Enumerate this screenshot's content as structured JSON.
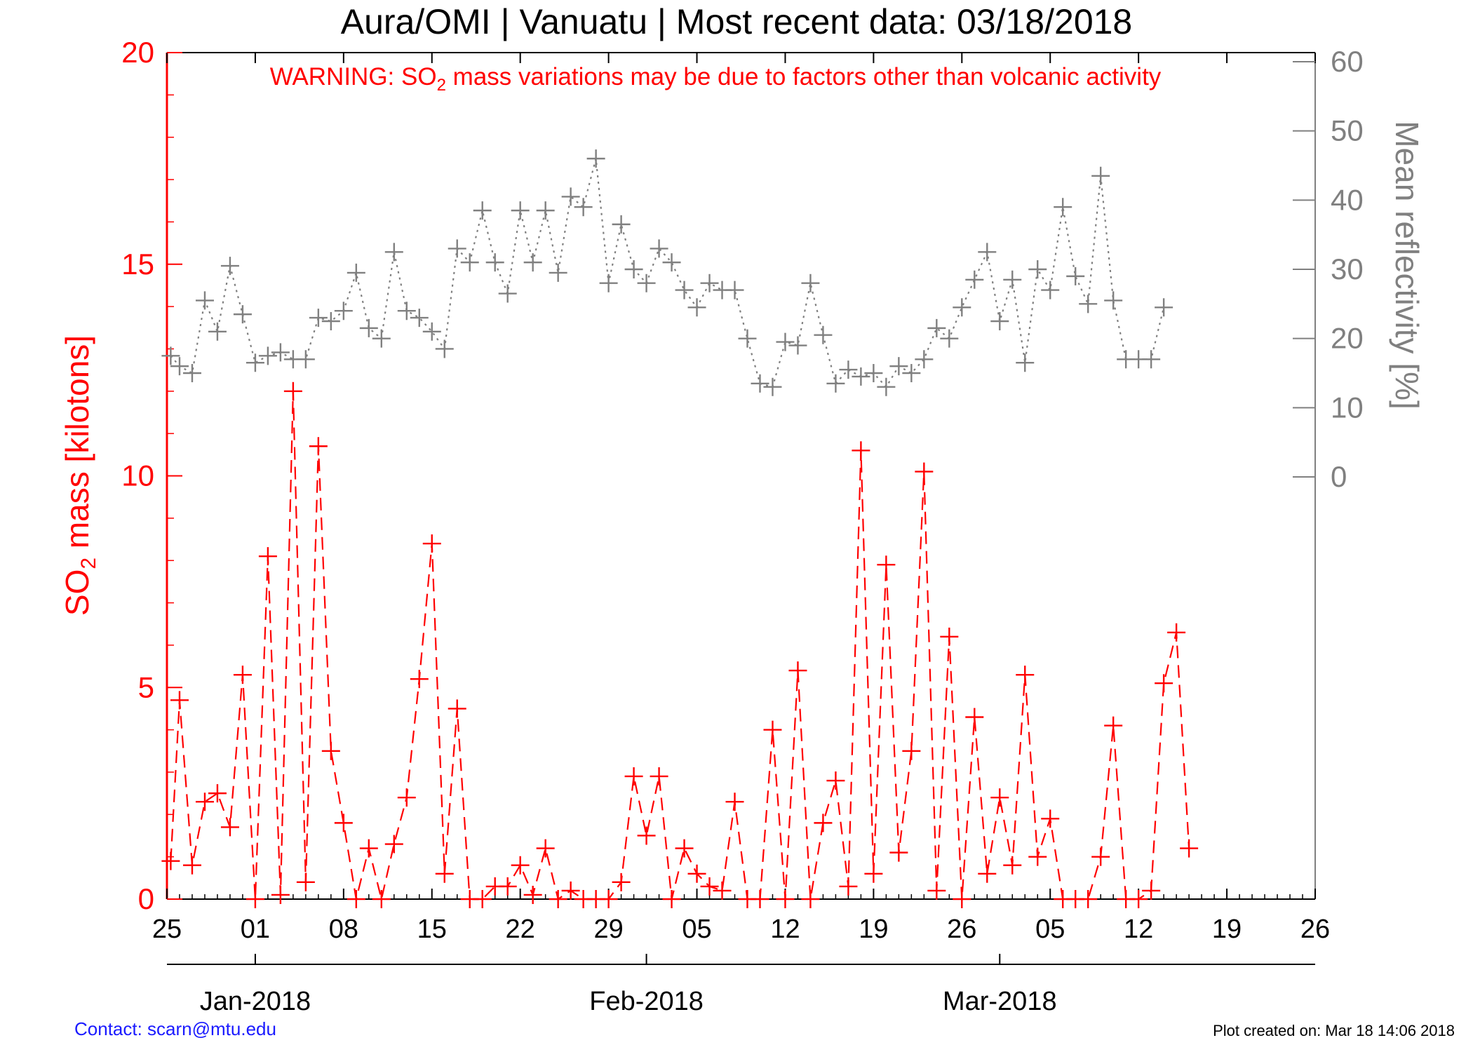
{
  "chart_data": {
    "type": "line",
    "title": "Aura/OMI | Vanuatu | Most recent data: 03/18/2018",
    "warning": {
      "prefix": "WARNING: SO",
      "sub": "2",
      "suffix": " mass variations may be due to factors other than volcanic activity"
    },
    "y_left": {
      "label_prefix": "SO",
      "label_sub": "2",
      "label_suffix": " mass [kilotons]",
      "ticks": [
        "0",
        "5",
        "10",
        "15",
        "20"
      ],
      "ylim": [
        0,
        20
      ]
    },
    "y_right": {
      "label": "Mean reflectivity [%]",
      "ticks": [
        "0",
        "10",
        "20",
        "30",
        "40",
        "50",
        "60"
      ],
      "ylim": [
        0,
        60
      ]
    },
    "x_ticks": [
      "25",
      "01",
      "08",
      "15",
      "22",
      "29",
      "05",
      "12",
      "19",
      "26",
      "05",
      "12",
      "19",
      "26"
    ],
    "month_labels": [
      "Jan-2018",
      "Feb-2018",
      "Mar-2018"
    ],
    "xlim_days": [
      0,
      91
    ],
    "series": [
      {
        "name": "SO2 mass",
        "color": "#ff0000",
        "style": "dashed",
        "points": [
          [
            0.3,
            0.9
          ],
          [
            1.0,
            4.7
          ],
          [
            2.0,
            0.8
          ],
          [
            3.0,
            2.3
          ],
          [
            4.0,
            2.5
          ],
          [
            5.0,
            1.7
          ],
          [
            6.0,
            5.3
          ],
          [
            7.0,
            0.0
          ],
          [
            8.0,
            8.1
          ],
          [
            9.0,
            0.1
          ],
          [
            10.0,
            12.0
          ],
          [
            11.0,
            0.4
          ],
          [
            12.0,
            10.7
          ],
          [
            13.0,
            3.5
          ],
          [
            14.0,
            1.8
          ],
          [
            15.0,
            0.0
          ],
          [
            16.0,
            1.2
          ],
          [
            17.0,
            0.0
          ],
          [
            18.0,
            1.3
          ],
          [
            19.0,
            2.4
          ],
          [
            20.0,
            5.2
          ],
          [
            21.0,
            8.4
          ],
          [
            22.0,
            0.6
          ],
          [
            23.0,
            4.5
          ],
          [
            24.0,
            0.0
          ],
          [
            25.0,
            0.0
          ],
          [
            26.0,
            0.3
          ],
          [
            27.0,
            0.3
          ],
          [
            28.0,
            0.8
          ],
          [
            29.0,
            0.1
          ],
          [
            30.0,
            1.2
          ],
          [
            31.0,
            0.0
          ],
          [
            32.0,
            0.2
          ],
          [
            33.0,
            0.0
          ],
          [
            34.0,
            0.0
          ],
          [
            35.0,
            0.0
          ],
          [
            36.0,
            0.4
          ],
          [
            37.0,
            2.9
          ],
          [
            38.0,
            1.5
          ],
          [
            39.0,
            2.9
          ],
          [
            40.0,
            0.0
          ],
          [
            41.0,
            1.2
          ],
          [
            42.0,
            0.6
          ],
          [
            43.0,
            0.3
          ],
          [
            44.0,
            0.2
          ],
          [
            45.0,
            2.3
          ],
          [
            46.0,
            0.0
          ],
          [
            47.0,
            0.0
          ],
          [
            48.0,
            4.0
          ],
          [
            49.0,
            0.0
          ],
          [
            50.0,
            5.4
          ],
          [
            51.0,
            0.0
          ],
          [
            52.0,
            1.8
          ],
          [
            53.0,
            2.8
          ],
          [
            54.0,
            0.3
          ],
          [
            55.0,
            10.6
          ],
          [
            56.0,
            0.6
          ],
          [
            57.0,
            7.9
          ],
          [
            58.0,
            1.1
          ],
          [
            59.0,
            3.5
          ],
          [
            60.0,
            10.1
          ],
          [
            61.0,
            0.2
          ],
          [
            62.0,
            6.2
          ],
          [
            63.0,
            0.0
          ],
          [
            64.0,
            4.3
          ],
          [
            65.0,
            0.6
          ],
          [
            66.0,
            2.4
          ],
          [
            67.0,
            0.8
          ],
          [
            68.0,
            5.3
          ],
          [
            69.0,
            1.0
          ],
          [
            70.0,
            1.9
          ],
          [
            71.0,
            0.0
          ],
          [
            72.0,
            0.0
          ],
          [
            73.0,
            0.0
          ],
          [
            74.0,
            1.0
          ],
          [
            75.0,
            4.1
          ],
          [
            76.0,
            0.0
          ],
          [
            77.0,
            0.0
          ],
          [
            78.0,
            0.2
          ],
          [
            79.0,
            5.1
          ],
          [
            80.0,
            6.3
          ],
          [
            81.0,
            1.2
          ]
        ]
      },
      {
        "name": "Mean reflectivity",
        "color": "#808080",
        "style": "dotted",
        "points": [
          [
            0.3,
            17.5
          ],
          [
            1.0,
            16.0
          ],
          [
            2.0,
            15.0
          ],
          [
            3.0,
            25.5
          ],
          [
            4.0,
            21.0
          ],
          [
            5.0,
            30.5
          ],
          [
            6.0,
            23.5
          ],
          [
            7.0,
            16.5
          ],
          [
            8.0,
            17.5
          ],
          [
            9.0,
            18.0
          ],
          [
            10.0,
            17.0
          ],
          [
            11.0,
            17.0
          ],
          [
            12.0,
            23.0
          ],
          [
            13.0,
            22.5
          ],
          [
            14.0,
            24.0
          ],
          [
            15.0,
            29.5
          ],
          [
            16.0,
            21.5
          ],
          [
            17.0,
            20.0
          ],
          [
            18.0,
            32.5
          ],
          [
            19.0,
            24.0
          ],
          [
            20.0,
            23.0
          ],
          [
            21.0,
            21.0
          ],
          [
            22.0,
            18.5
          ],
          [
            23.0,
            33.0
          ],
          [
            24.0,
            31.0
          ],
          [
            25.0,
            38.5
          ],
          [
            26.0,
            31.0
          ],
          [
            27.0,
            26.5
          ],
          [
            28.0,
            38.5
          ],
          [
            29.0,
            31.0
          ],
          [
            30.0,
            38.5
          ],
          [
            31.0,
            29.5
          ],
          [
            32.0,
            40.5
          ],
          [
            33.0,
            39.0
          ],
          [
            34.0,
            46.0
          ],
          [
            35.0,
            28.0
          ],
          [
            36.0,
            36.5
          ],
          [
            37.0,
            30.0
          ],
          [
            38.0,
            28.0
          ],
          [
            39.0,
            33.0
          ],
          [
            40.0,
            31.0
          ],
          [
            41.0,
            27.0
          ],
          [
            42.0,
            24.5
          ],
          [
            43.0,
            28.0
          ],
          [
            44.0,
            27.0
          ],
          [
            45.0,
            27.0
          ],
          [
            46.0,
            20.0
          ],
          [
            47.0,
            13.5
          ],
          [
            48.0,
            13.0
          ],
          [
            49.0,
            19.5
          ],
          [
            50.0,
            19.0
          ],
          [
            51.0,
            28.0
          ],
          [
            52.0,
            20.5
          ],
          [
            53.0,
            13.5
          ],
          [
            54.0,
            15.5
          ],
          [
            55.0,
            14.5
          ],
          [
            56.0,
            15.0
          ],
          [
            57.0,
            13.0
          ],
          [
            58.0,
            16.0
          ],
          [
            59.0,
            15.0
          ],
          [
            60.0,
            17.0
          ],
          [
            61.0,
            21.5
          ],
          [
            62.0,
            20.0
          ],
          [
            63.0,
            24.5
          ],
          [
            64.0,
            28.5
          ],
          [
            65.0,
            32.5
          ],
          [
            66.0,
            22.5
          ],
          [
            67.0,
            28.5
          ],
          [
            68.0,
            16.5
          ],
          [
            69.0,
            30.0
          ],
          [
            70.0,
            27.0
          ],
          [
            71.0,
            39.0
          ],
          [
            72.0,
            29.0
          ],
          [
            73.0,
            25.0
          ],
          [
            74.0,
            43.5
          ],
          [
            75.0,
            25.5
          ],
          [
            76.0,
            17.0
          ],
          [
            77.0,
            17.0
          ],
          [
            78.0,
            17.0
          ],
          [
            79.0,
            24.5
          ]
        ]
      }
    ],
    "grid": false
  },
  "footer": {
    "contact": "Contact: scarn@mtu.edu",
    "created": "Plot created on: Mar 18 14:06 2018"
  }
}
